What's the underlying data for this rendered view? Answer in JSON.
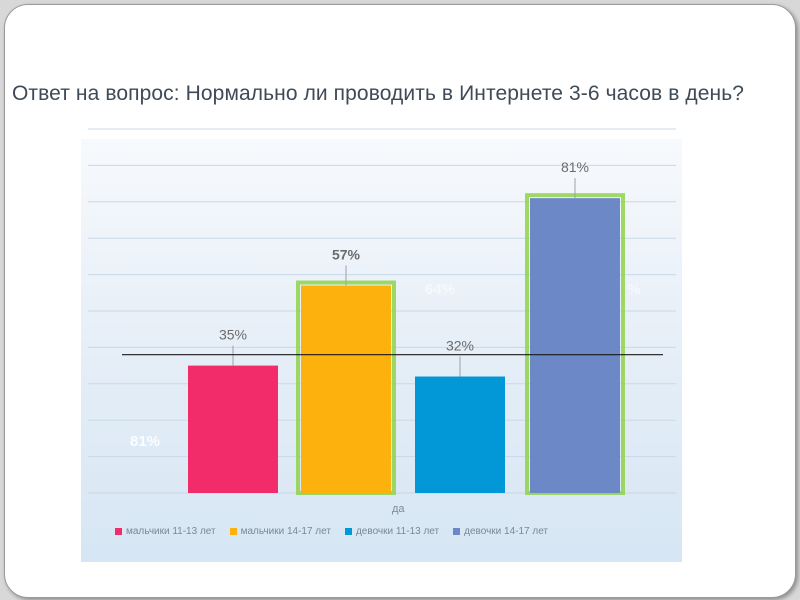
{
  "title": "Ответ на вопрос: Нормально ли проводить в Интернете 3-6 часов в день?",
  "chart_data": {
    "type": "bar",
    "categories": [
      "да"
    ],
    "ylim": [
      0,
      100
    ],
    "grid": true,
    "legend_position": "bottom",
    "series": [
      {
        "name": "мальчики 11-13 лет",
        "values": [
          35
        ],
        "label": "35%",
        "color": "#f22b6b"
      },
      {
        "name": "мальчики 14-17 лет",
        "values": [
          57
        ],
        "label": "57%",
        "color": "#fcb10c"
      },
      {
        "name": "девочки 11-13 лет",
        "values": [
          32
        ],
        "label": "32%",
        "color": "#0298d8"
      },
      {
        "name": "девочки 14-17 лет",
        "values": [
          81
        ],
        "label": "81%",
        "color": "#6c88c6"
      }
    ],
    "reference_line_value": 38,
    "annotations": [
      "81%",
      "64%",
      "%"
    ]
  },
  "colors": {
    "highlight_glow": "#8fd24a",
    "gridline": "#c9d8e8",
    "label_text": "#6b6b6b"
  }
}
